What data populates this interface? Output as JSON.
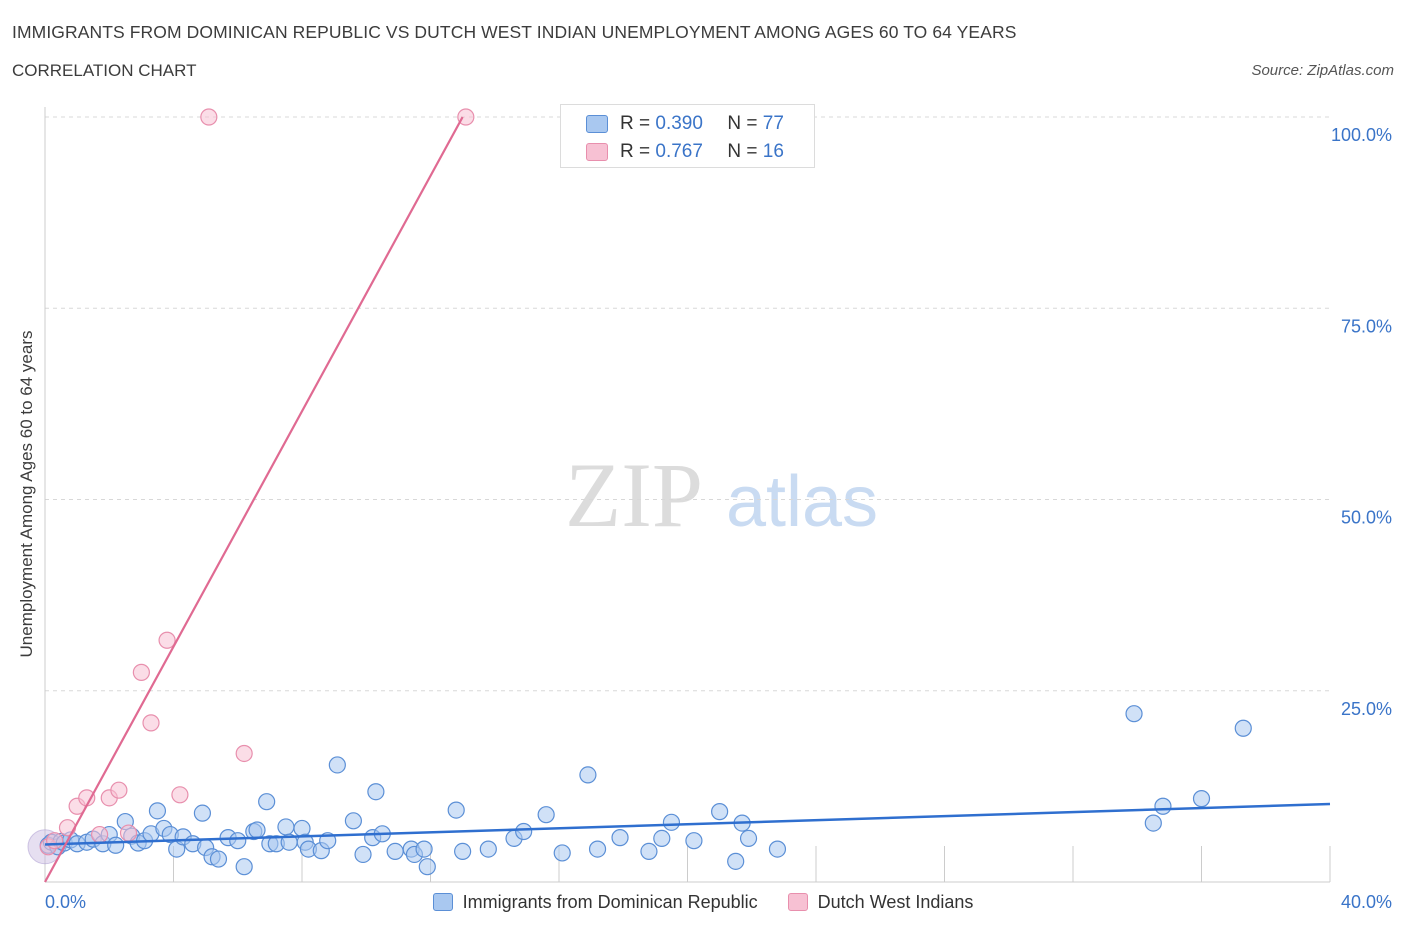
{
  "header": {
    "title": "IMMIGRANTS FROM DOMINICAN REPUBLIC VS DUTCH WEST INDIAN UNEMPLOYMENT AMONG AGES 60 TO 64 YEARS",
    "subtitle": "CORRELATION CHART",
    "source": "Source: ZipAtlas.com"
  },
  "watermark": {
    "zip": "ZIP",
    "atlas": "atlas"
  },
  "colors": {
    "blue_fill": "#a9c8f0",
    "blue_stroke": "#5b8fd6",
    "blue_line": "#2f6fcf",
    "pink_fill": "#f7c1d3",
    "pink_stroke": "#e88fad",
    "pink_line": "#e06a92",
    "axis_text": "#3a74c8",
    "grid": "#d8d8d8"
  },
  "legend_stats": [
    {
      "r_label": "R =",
      "r_value": "0.390",
      "n_label": "N =",
      "n_value": "77",
      "series": "blue"
    },
    {
      "r_label": "R =",
      "r_value": "0.767",
      "n_label": "N =",
      "n_value": "16",
      "series": "pink"
    }
  ],
  "chart_data": {
    "type": "scatter",
    "title": "IMMIGRANTS FROM DOMINICAN REPUBLIC VS DUTCH WEST INDIAN UNEMPLOYMENT AMONG AGES 60 TO 64 YEARS",
    "xlabel": "",
    "ylabel": "Unemployment Among Ages 60 to 64 years",
    "xlim": [
      0,
      40
    ],
    "ylim": [
      0,
      100
    ],
    "x_tick_labels": [
      "0.0%",
      "40.0%"
    ],
    "y_tick_values": [
      25,
      50,
      75,
      100
    ],
    "y_tick_labels": [
      "25.0%",
      "50.0%",
      "75.0%",
      "100.0%"
    ],
    "grid": true,
    "legend": "bottom-center",
    "series": [
      {
        "name": "Immigrants from Dominican Republic",
        "color": "blue",
        "R": 0.39,
        "N": 77,
        "trend": {
          "x": [
            0,
            40
          ],
          "y": [
            4.9,
            10.2
          ]
        },
        "points": [
          [
            0.1,
            4.8
          ],
          [
            0.2,
            5.2
          ],
          [
            0.4,
            4.6
          ],
          [
            0.5,
            5.3
          ],
          [
            0.6,
            5.1
          ],
          [
            0.8,
            5.5
          ],
          [
            1.0,
            5.0
          ],
          [
            1.3,
            5.2
          ],
          [
            1.5,
            5.6
          ],
          [
            1.8,
            5.0
          ],
          [
            2.0,
            6.2
          ],
          [
            2.2,
            4.8
          ],
          [
            2.5,
            7.9
          ],
          [
            2.7,
            6.0
          ],
          [
            2.9,
            5.1
          ],
          [
            3.1,
            5.4
          ],
          [
            3.3,
            6.3
          ],
          [
            3.5,
            9.3
          ],
          [
            3.7,
            7.0
          ],
          [
            3.9,
            6.2
          ],
          [
            4.1,
            4.3
          ],
          [
            4.3,
            5.9
          ],
          [
            4.6,
            5.0
          ],
          [
            4.9,
            9.0
          ],
          [
            5.0,
            4.5
          ],
          [
            5.2,
            3.3
          ],
          [
            5.4,
            3.0
          ],
          [
            5.7,
            5.8
          ],
          [
            6.0,
            5.4
          ],
          [
            6.2,
            2.0
          ],
          [
            6.5,
            6.6
          ],
          [
            6.6,
            6.8
          ],
          [
            6.9,
            10.5
          ],
          [
            7.0,
            5.0
          ],
          [
            7.2,
            5.0
          ],
          [
            7.5,
            7.2
          ],
          [
            7.6,
            5.2
          ],
          [
            8.0,
            7.0
          ],
          [
            8.1,
            5.2
          ],
          [
            8.2,
            4.3
          ],
          [
            8.6,
            4.1
          ],
          [
            8.8,
            5.4
          ],
          [
            9.1,
            15.3
          ],
          [
            9.6,
            8.0
          ],
          [
            9.9,
            3.6
          ],
          [
            10.2,
            5.8
          ],
          [
            10.3,
            11.8
          ],
          [
            10.5,
            6.3
          ],
          [
            10.9,
            4.0
          ],
          [
            11.4,
            4.3
          ],
          [
            11.5,
            3.6
          ],
          [
            11.8,
            4.3
          ],
          [
            11.9,
            2.0
          ],
          [
            12.8,
            9.4
          ],
          [
            13.0,
            4.0
          ],
          [
            13.8,
            4.3
          ],
          [
            14.6,
            5.7
          ],
          [
            14.9,
            6.6
          ],
          [
            15.6,
            8.8
          ],
          [
            16.1,
            3.8
          ],
          [
            16.9,
            14.0
          ],
          [
            17.2,
            4.3
          ],
          [
            17.9,
            5.8
          ],
          [
            18.8,
            4.0
          ],
          [
            19.2,
            5.7
          ],
          [
            19.5,
            7.8
          ],
          [
            20.2,
            5.4
          ],
          [
            21.0,
            9.2
          ],
          [
            21.5,
            2.7
          ],
          [
            21.7,
            7.7
          ],
          [
            21.9,
            5.7
          ],
          [
            22.8,
            4.3
          ],
          [
            33.9,
            22.0
          ],
          [
            34.5,
            7.7
          ],
          [
            34.8,
            9.9
          ],
          [
            36.0,
            10.9
          ],
          [
            37.3,
            20.1
          ]
        ]
      },
      {
        "name": "Dutch West Indians",
        "color": "pink",
        "R": 0.767,
        "N": 16,
        "trend": {
          "x": [
            0,
            13.0
          ],
          "y": [
            0,
            100
          ]
        },
        "points": [
          [
            0.1,
            4.6
          ],
          [
            0.3,
            5.4
          ],
          [
            0.7,
            7.1
          ],
          [
            1.0,
            9.9
          ],
          [
            1.3,
            11.0
          ],
          [
            1.7,
            6.2
          ],
          [
            2.0,
            11.0
          ],
          [
            2.3,
            12.0
          ],
          [
            2.6,
            6.4
          ],
          [
            3.0,
            27.4
          ],
          [
            3.3,
            20.8
          ],
          [
            3.8,
            31.6
          ],
          [
            4.2,
            11.4
          ],
          [
            5.1,
            100.0
          ],
          [
            6.2,
            16.8
          ],
          [
            13.1,
            100.0
          ]
        ]
      }
    ]
  }
}
